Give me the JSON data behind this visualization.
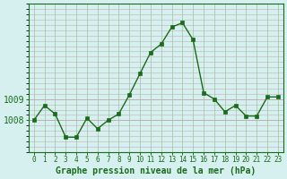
{
  "x": [
    0,
    1,
    2,
    3,
    4,
    5,
    6,
    7,
    8,
    9,
    10,
    11,
    12,
    13,
    14,
    15,
    16,
    17,
    18,
    19,
    20,
    21,
    22,
    23
  ],
  "y": [
    1008.0,
    1008.7,
    1008.3,
    1007.2,
    1007.2,
    1008.1,
    1007.6,
    1008.0,
    1008.3,
    1009.2,
    1010.2,
    1011.2,
    1011.6,
    1012.4,
    1012.6,
    1011.8,
    1009.3,
    1009.0,
    1008.4,
    1008.7,
    1008.2,
    1008.2,
    1009.1,
    1009.1
  ],
  "line_color": "#1a6b1a",
  "marker_color": "#1a6b1a",
  "bg_color": "#d6f0f0",
  "grid_color_h": "#c0b0b0",
  "grid_color_v": "#a0c0a0",
  "xlabel": "Graphe pression niveau de la mer (hPa)",
  "xlabel_color": "#1a6b1a",
  "tick_color": "#1a6b1a",
  "yticks": [
    1008,
    1009
  ],
  "ylim": [
    1006.5,
    1013.5
  ],
  "xlim": [
    -0.5,
    23.5
  ],
  "figsize": [
    3.2,
    2.0
  ],
  "dpi": 100
}
